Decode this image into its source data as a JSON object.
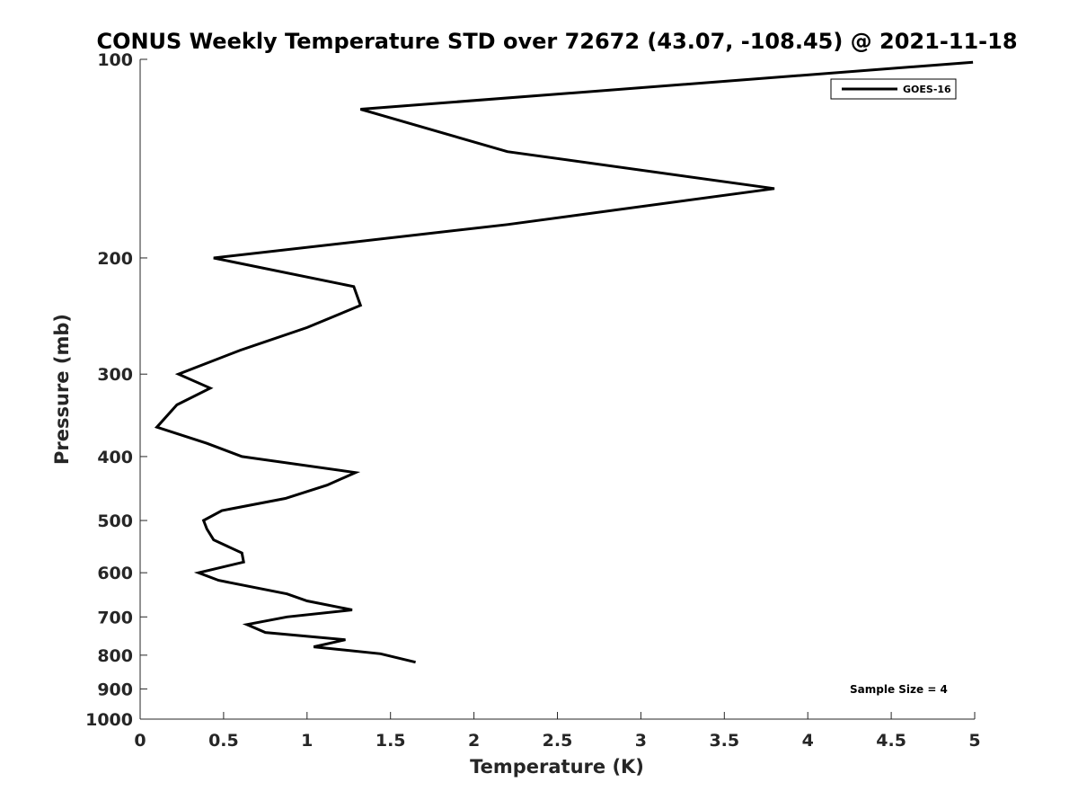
{
  "chart_data": {
    "type": "line",
    "title": "CONUS Weekly Temperature STD over 72672 (43.07, -108.45) @ 2021-11-18",
    "xlabel": "Temperature (K)",
    "ylabel": "Pressure (mb)",
    "xlim": [
      0,
      5
    ],
    "ylim": [
      100,
      1000
    ],
    "y_scale": "log",
    "y_reversed": true,
    "grid": false,
    "x_ticks": [
      0,
      0.5,
      1,
      1.5,
      2,
      2.5,
      3,
      3.5,
      4,
      4.5,
      5
    ],
    "x_tick_labels": [
      "0",
      "0.5",
      "1",
      "1.5",
      "2",
      "2.5",
      "3",
      "3.5",
      "4",
      "4.5",
      "5"
    ],
    "y_ticks": [
      100,
      200,
      300,
      400,
      500,
      600,
      700,
      800,
      900,
      1000
    ],
    "y_tick_labels": [
      "100",
      "200",
      "300",
      "400",
      "500",
      "600",
      "700",
      "800",
      "900",
      "1000"
    ],
    "legend": {
      "placement": "top-right",
      "entries": [
        "GOES-16"
      ]
    },
    "annotation": "Sample Size = 4",
    "series": [
      {
        "name": "GOES-16",
        "color": "#000000",
        "points": [
          [
            4.99,
            101
          ],
          [
            1.32,
            119
          ],
          [
            2.2,
            138
          ],
          [
            3.8,
            157
          ],
          [
            2.2,
            178
          ],
          [
            0.44,
            200
          ],
          [
            1.28,
            221
          ],
          [
            1.32,
            236
          ],
          [
            1.0,
            255
          ],
          [
            0.6,
            276
          ],
          [
            0.23,
            300
          ],
          [
            0.42,
            315
          ],
          [
            0.22,
            334
          ],
          [
            0.1,
            361
          ],
          [
            0.4,
            382
          ],
          [
            0.61,
            400
          ],
          [
            1.29,
            423
          ],
          [
            1.12,
            442
          ],
          [
            0.87,
            463
          ],
          [
            0.49,
            483
          ],
          [
            0.38,
            500
          ],
          [
            0.4,
            515
          ],
          [
            0.44,
            535
          ],
          [
            0.61,
            560
          ],
          [
            0.62,
            578
          ],
          [
            0.35,
            600
          ],
          [
            0.47,
            616
          ],
          [
            0.88,
            646
          ],
          [
            1.0,
            662
          ],
          [
            1.27,
            683
          ],
          [
            0.88,
            700
          ],
          [
            0.64,
            719
          ],
          [
            0.75,
            739
          ],
          [
            1.23,
            758
          ],
          [
            1.04,
            777
          ],
          [
            1.44,
            796
          ],
          [
            1.65,
            820
          ]
        ]
      }
    ]
  }
}
